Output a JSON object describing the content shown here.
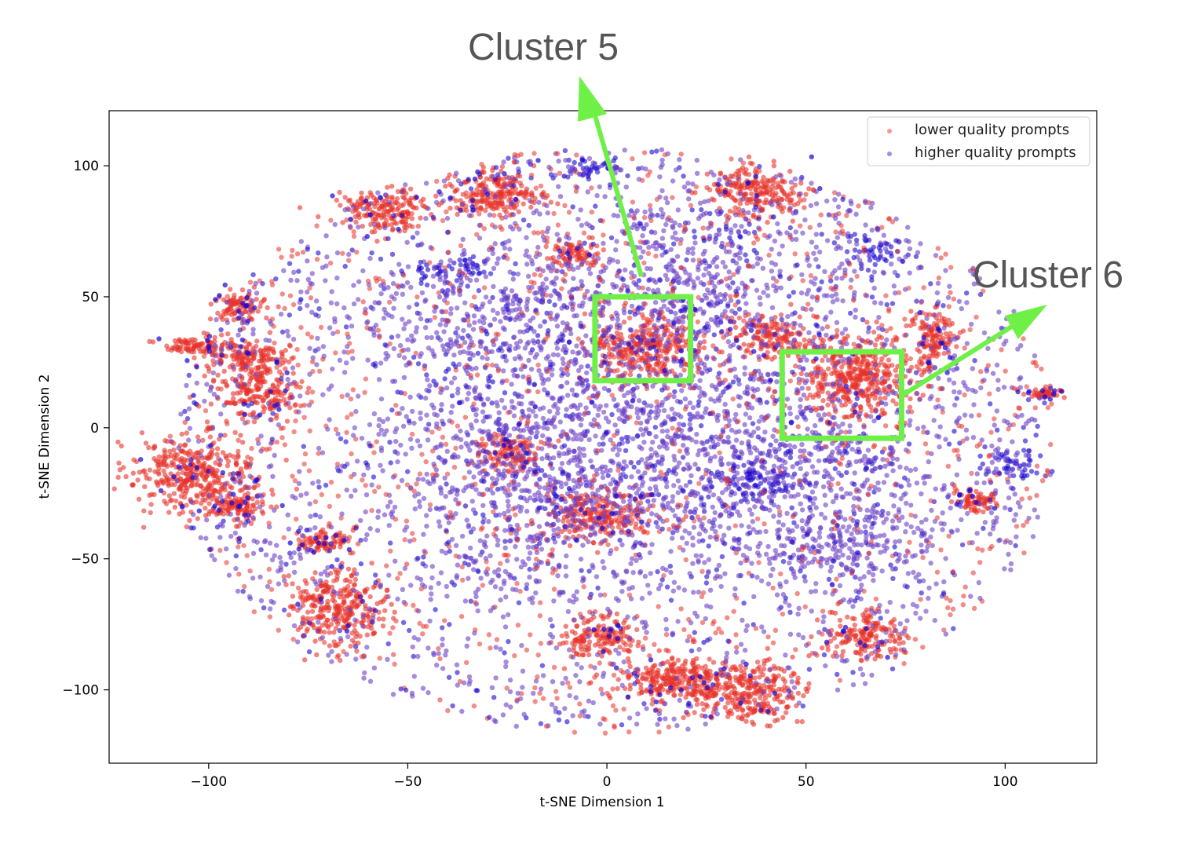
{
  "chart_data": {
    "type": "scatter",
    "title": "",
    "xlabel": "t-SNE Dimension 1",
    "ylabel": "t-SNE Dimension 2",
    "xlim": [
      -125,
      123
    ],
    "ylim": [
      -128,
      121
    ],
    "xticks": [
      -100,
      -50,
      0,
      50,
      100
    ],
    "yticks": [
      -100,
      -50,
      0,
      50,
      100
    ],
    "grid": false,
    "legend_position": "top-right",
    "colors": {
      "lower": "#e8322a",
      "higher_light": "#6a3fc4",
      "higher_dark": "#1a06d0",
      "highlight": "#6ff046",
      "annotation_text": "#555555"
    },
    "series": [
      {
        "name": "lower quality prompts",
        "approx_points": 7000,
        "dense_regions": [
          {
            "cx": -103,
            "cy": 31,
            "sx": 5,
            "sy": 2
          },
          {
            "cx": -90,
            "cy": 27,
            "sx": 6,
            "sy": 3
          },
          {
            "cx": -104,
            "cy": -17,
            "sx": 8,
            "sy": 7
          },
          {
            "cx": -93,
            "cy": -30,
            "sx": 4,
            "sy": 3
          },
          {
            "cx": -67,
            "cy": -68,
            "sx": 6,
            "sy": 7
          },
          {
            "cx": -71,
            "cy": -43,
            "sx": 4,
            "sy": 2
          },
          {
            "cx": -28,
            "cy": 90,
            "sx": 6,
            "sy": 5
          },
          {
            "cx": -56,
            "cy": 83,
            "sx": 6,
            "sy": 4
          },
          {
            "cx": -8,
            "cy": 66,
            "sx": 3,
            "sy": 3
          },
          {
            "cx": -87,
            "cy": 14,
            "sx": 5,
            "sy": 5
          },
          {
            "cx": -92,
            "cy": 46,
            "sx": 3,
            "sy": 3
          },
          {
            "cx": 9,
            "cy": 30,
            "sx": 7,
            "sy": 7
          },
          {
            "cx": -2,
            "cy": -33,
            "sx": 7,
            "sy": 5
          },
          {
            "cx": 38,
            "cy": 90,
            "sx": 6,
            "sy": 5
          },
          {
            "cx": 62,
            "cy": 20,
            "sx": 8,
            "sy": 8
          },
          {
            "cx": 33,
            "cy": -100,
            "sx": 9,
            "sy": 6
          },
          {
            "cx": 15,
            "cy": -95,
            "sx": 6,
            "sy": 4
          },
          {
            "cx": -2,
            "cy": -80,
            "sx": 5,
            "sy": 4
          },
          {
            "cx": 65,
            "cy": -80,
            "sx": 5,
            "sy": 4
          },
          {
            "cx": 82,
            "cy": 35,
            "sx": 3,
            "sy": 5
          },
          {
            "cx": 40,
            "cy": 35,
            "sx": 5,
            "sy": 4
          },
          {
            "cx": -24,
            "cy": -10,
            "sx": 4,
            "sy": 4
          },
          {
            "cx": 110,
            "cy": 13,
            "sx": 2,
            "sy": 1
          },
          {
            "cx": 93,
            "cy": -28,
            "sx": 3,
            "sy": 2
          }
        ]
      },
      {
        "name": "higher quality prompts",
        "approx_points": 9000,
        "dense_regions": [
          {
            "cx": 10,
            "cy": 0,
            "sx": 28,
            "sy": 28
          },
          {
            "cx": 45,
            "cy": -20,
            "sx": 18,
            "sy": 20
          },
          {
            "cx": -20,
            "cy": -20,
            "sx": 18,
            "sy": 22
          },
          {
            "cx": 60,
            "cy": -45,
            "sx": 14,
            "sy": 10
          },
          {
            "cx": 20,
            "cy": 60,
            "sx": 20,
            "sy": 18
          },
          {
            "cx": -30,
            "cy": 40,
            "sx": 15,
            "sy": 14
          },
          {
            "cx": 37,
            "cy": -20,
            "sx": 5,
            "sy": 4
          },
          {
            "cx": 102,
            "cy": -15,
            "sx": 4,
            "sy": 4
          },
          {
            "cx": 67,
            "cy": 68,
            "sx": 5,
            "sy": 3
          },
          {
            "cx": -4,
            "cy": 99,
            "sx": 4,
            "sy": 2
          },
          {
            "cx": -40,
            "cy": 60,
            "sx": 5,
            "sy": 3
          }
        ]
      }
    ],
    "annotations": [
      {
        "label": "Cluster 5",
        "box": {
          "x0": -3,
          "x1": 21,
          "y0": 18,
          "y1": 50
        }
      },
      {
        "label": "Cluster 6",
        "box": {
          "x0": 44,
          "x1": 74,
          "y0": -4,
          "y1": 29
        }
      }
    ]
  }
}
